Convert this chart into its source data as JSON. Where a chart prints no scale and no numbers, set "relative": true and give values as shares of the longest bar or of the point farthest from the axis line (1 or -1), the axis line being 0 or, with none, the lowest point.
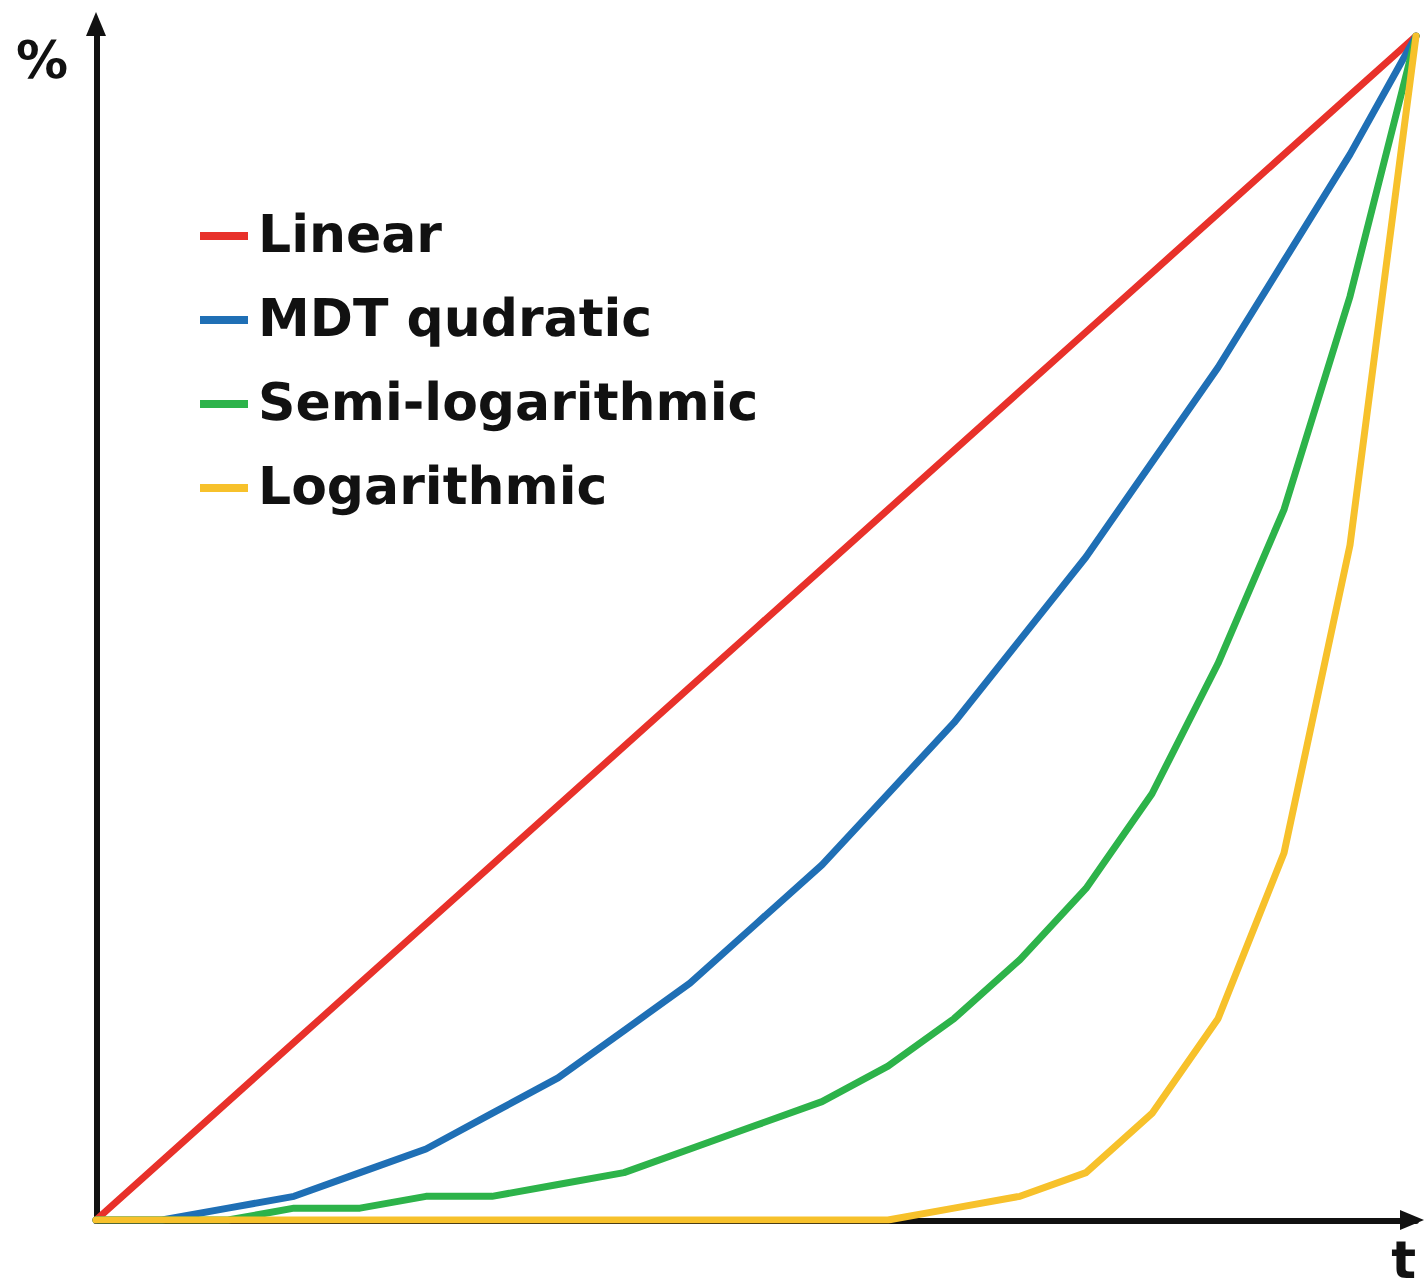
{
  "chart_data": {
    "type": "line",
    "relative": true,
    "xlabel": "t",
    "ylabel": "%",
    "legend": "top left",
    "grid": false,
    "marker": "none",
    "line_style": "solid",
    "categories": [
      null,
      null,
      null,
      null,
      null,
      null,
      null,
      null,
      null,
      null,
      null,
      null,
      null,
      null,
      null,
      null,
      null,
      null,
      null,
      null,
      null
    ],
    "series": [
      {
        "name": "Linear",
        "color": "#e8312a",
        "values": [
          0,
          0.05,
          0.1,
          0.15,
          0.2,
          0.25,
          0.3,
          0.35,
          0.4,
          0.45,
          0.5,
          0.55,
          0.6,
          0.65,
          0.7,
          0.75,
          0.8,
          0.85,
          0.9,
          0.95,
          1
        ]
      },
      {
        "name": "MDT qudratic",
        "color": "#1f6fb5",
        "values": [
          0,
          0,
          0.01,
          0.02,
          0.04,
          0.06,
          0.09,
          0.12,
          0.16,
          0.2,
          0.25,
          0.3,
          0.36,
          0.42,
          0.49,
          0.56,
          0.64,
          0.72,
          0.81,
          0.9,
          1
        ]
      },
      {
        "name": "Semi-logarithmic",
        "color": "#2db34a",
        "values": [
          0,
          0,
          0,
          0.01,
          0.01,
          0.02,
          0.02,
          0.03,
          0.04,
          0.06,
          0.08,
          0.1,
          0.13,
          0.17,
          0.22,
          0.28,
          0.36,
          0.47,
          0.6,
          0.78,
          1
        ]
      },
      {
        "name": "Logarithmic",
        "color": "#f7c12b",
        "values": [
          0,
          0,
          0,
          0,
          0,
          0,
          0,
          0,
          0,
          0,
          0,
          0,
          0,
          0.01,
          0.02,
          0.04,
          0.09,
          0.17,
          0.31,
          0.57,
          1
        ]
      }
    ]
  }
}
